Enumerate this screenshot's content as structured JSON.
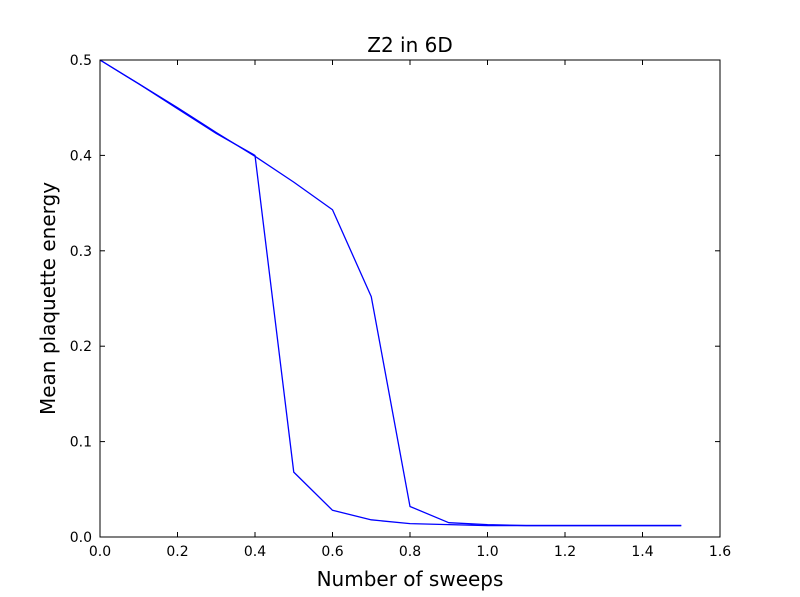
{
  "chart_data": {
    "type": "line",
    "title": "Z2 in 6D",
    "xlabel": "Number of sweeps",
    "ylabel": "Mean plaquette energy",
    "xlim": [
      0.0,
      1.6
    ],
    "ylim": [
      0.0,
      0.5
    ],
    "xticks": [
      "0.0",
      "0.2",
      "0.4",
      "0.6",
      "0.8",
      "1.0",
      "1.2",
      "1.4",
      "1.6"
    ],
    "yticks": [
      "0.0",
      "0.1",
      "0.2",
      "0.3",
      "0.4",
      "0.5"
    ],
    "grid": false,
    "legend": null,
    "series": [
      {
        "color": "#0000ff",
        "x": [
          0.0,
          0.1,
          0.2,
          0.3,
          0.4,
          0.5,
          0.6,
          0.7,
          0.8,
          0.9,
          1.0,
          1.1,
          1.2,
          1.3,
          1.4,
          1.5
        ],
        "y": [
          0.5,
          0.475,
          0.45,
          0.424,
          0.399,
          0.372,
          0.343,
          0.252,
          0.032,
          0.015,
          0.013,
          0.012,
          0.012,
          0.012,
          0.012,
          0.012
        ]
      },
      {
        "color": "#0000ff",
        "x": [
          0.0,
          0.1,
          0.2,
          0.3,
          0.4,
          0.5,
          0.6,
          0.7,
          0.8,
          0.9,
          1.0,
          1.1,
          1.2,
          1.3,
          1.4,
          1.5
        ],
        "y": [
          0.5,
          0.475,
          0.449,
          0.423,
          0.4,
          0.068,
          0.028,
          0.018,
          0.014,
          0.013,
          0.012,
          0.012,
          0.012,
          0.012,
          0.012,
          0.012
        ]
      }
    ]
  }
}
